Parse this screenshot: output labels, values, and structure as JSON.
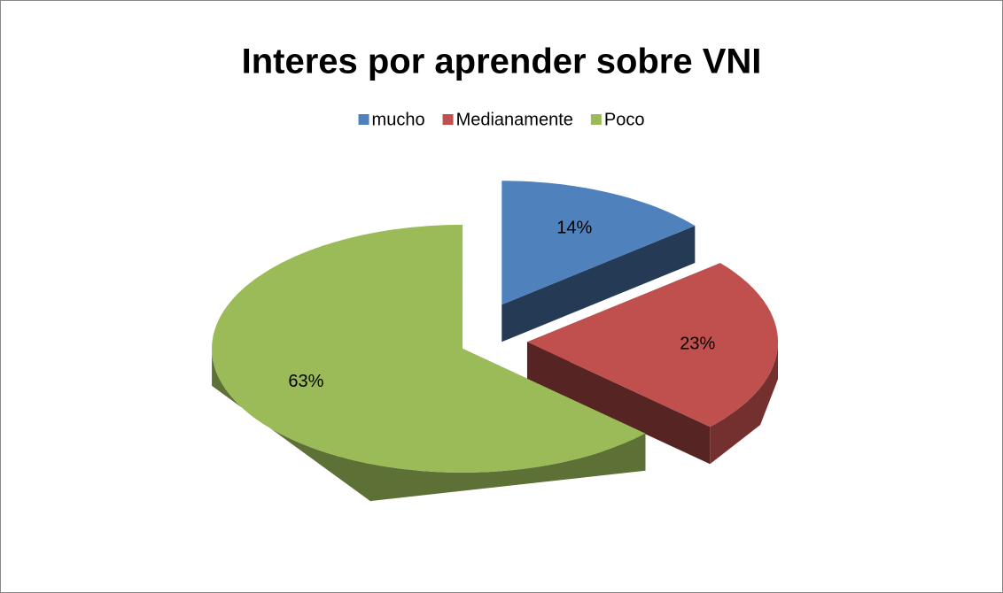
{
  "chart_data": {
    "type": "pie",
    "title": "Interes por aprender sobre VNI",
    "categories": [
      "mucho",
      "Medianamente",
      "Poco"
    ],
    "values": [
      14,
      23,
      63
    ],
    "value_labels": [
      "14%",
      "23%",
      "63%"
    ],
    "colors": [
      "#4f81bd",
      "#c0504d",
      "#9bbb59"
    ],
    "legend": "top"
  }
}
